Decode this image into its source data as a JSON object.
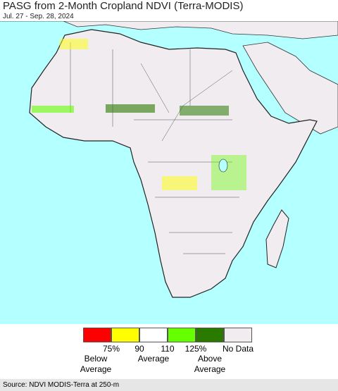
{
  "header": {
    "title": "PASG from 2-Month Cropland NDVI (Terra-MODIS)",
    "subtitle": "Jul. 27 - Sep. 28, 2024"
  },
  "legend": {
    "colors": [
      "#ff0000",
      "#ffff00",
      "#ffffff",
      "#66ff00",
      "#2a7a00",
      "#f0ecf0"
    ],
    "ticks": [
      "75%",
      "90",
      "110",
      "125%"
    ],
    "no_data": "No Data",
    "groups": [
      "Below Average",
      "Average",
      "Above Average"
    ]
  },
  "source": "Source: NDVI MODIS-Terra at 250-m"
}
